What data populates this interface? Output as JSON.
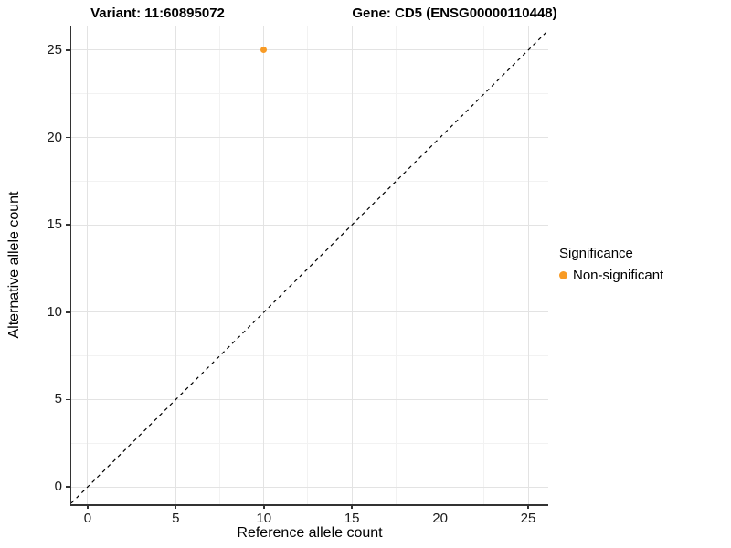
{
  "chart_data": {
    "type": "scatter",
    "title_left": "Variant: 11:60895072",
    "title_right": "Gene: CD5 (ENSG00000110448)",
    "xlabel": "Reference allele count",
    "ylabel": "Alternative allele count",
    "xlim": [
      -0.93,
      26.14
    ],
    "ylim": [
      -0.99,
      26.41
    ],
    "x_ticks": [
      0,
      5,
      10,
      15,
      20,
      25
    ],
    "y_ticks": [
      0,
      5,
      10,
      15,
      20,
      25
    ],
    "x_minor_ticks": [
      2.5,
      7.5,
      12.5,
      17.5,
      22.5
    ],
    "y_minor_ticks": [
      2.5,
      7.5,
      12.5,
      17.5,
      22.5
    ],
    "grid": true,
    "points": [
      {
        "x": 10,
        "y": 25,
        "series": "Non-significant"
      }
    ],
    "reference_line": {
      "type": "identity",
      "slope": 1,
      "intercept": 0,
      "style": "dashed",
      "color": "#000000"
    },
    "legend": {
      "title": "Significance",
      "position": "right",
      "items": [
        {
          "label": "Non-significant",
          "color": "#F89B25"
        }
      ]
    },
    "colors": {
      "point": "#F89B25",
      "grid_major": "#e3e3e3",
      "grid_minor": "#f2f2f2",
      "axis": "#333333",
      "title": "#000000"
    }
  }
}
